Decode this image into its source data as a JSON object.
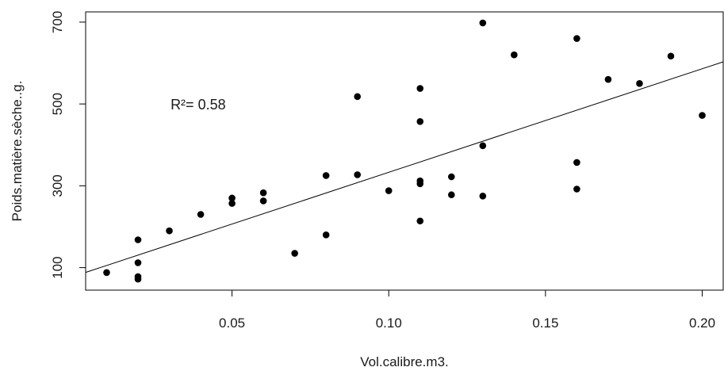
{
  "chart_data": {
    "type": "scatter",
    "title": "",
    "xlabel": "Vol.calibre.m3.",
    "ylabel": "Poids.matière.sèche..g.",
    "xlim": [
      0.0033,
      0.2067
    ],
    "ylim": [
      45,
      725
    ],
    "x_ticks": [
      0.05,
      0.1,
      0.15,
      0.2
    ],
    "x_tick_labels": [
      "0.05",
      "0.10",
      "0.15",
      "0.20"
    ],
    "y_ticks": [
      100,
      300,
      500,
      700
    ],
    "y_tick_labels": [
      "100",
      "300",
      "500",
      "700"
    ],
    "grid": false,
    "legend": "none",
    "point_color": "#000000",
    "line_color": "#000000",
    "points": [
      {
        "x": 0.01,
        "y": 88
      },
      {
        "x": 0.02,
        "y": 168
      },
      {
        "x": 0.02,
        "y": 112
      },
      {
        "x": 0.02,
        "y": 78
      },
      {
        "x": 0.02,
        "y": 72
      },
      {
        "x": 0.03,
        "y": 190
      },
      {
        "x": 0.04,
        "y": 230
      },
      {
        "x": 0.05,
        "y": 270
      },
      {
        "x": 0.05,
        "y": 257
      },
      {
        "x": 0.06,
        "y": 283
      },
      {
        "x": 0.06,
        "y": 263
      },
      {
        "x": 0.07,
        "y": 135
      },
      {
        "x": 0.08,
        "y": 325
      },
      {
        "x": 0.08,
        "y": 180
      },
      {
        "x": 0.09,
        "y": 518
      },
      {
        "x": 0.09,
        "y": 327
      },
      {
        "x": 0.1,
        "y": 288
      },
      {
        "x": 0.11,
        "y": 538
      },
      {
        "x": 0.11,
        "y": 457
      },
      {
        "x": 0.11,
        "y": 312
      },
      {
        "x": 0.11,
        "y": 305
      },
      {
        "x": 0.11,
        "y": 214
      },
      {
        "x": 0.12,
        "y": 322
      },
      {
        "x": 0.12,
        "y": 278
      },
      {
        "x": 0.13,
        "y": 698
      },
      {
        "x": 0.13,
        "y": 398
      },
      {
        "x": 0.13,
        "y": 275
      },
      {
        "x": 0.14,
        "y": 620
      },
      {
        "x": 0.16,
        "y": 660
      },
      {
        "x": 0.16,
        "y": 357
      },
      {
        "x": 0.16,
        "y": 292
      },
      {
        "x": 0.17,
        "y": 560
      },
      {
        "x": 0.18,
        "y": 550
      },
      {
        "x": 0.19,
        "y": 617
      },
      {
        "x": 0.2,
        "y": 472
      }
    ],
    "fit_line": {
      "intercept": 80,
      "slope": 2530
    },
    "annotation": {
      "text": "R²= 0.58",
      "x": 0.04,
      "y": 500
    }
  }
}
